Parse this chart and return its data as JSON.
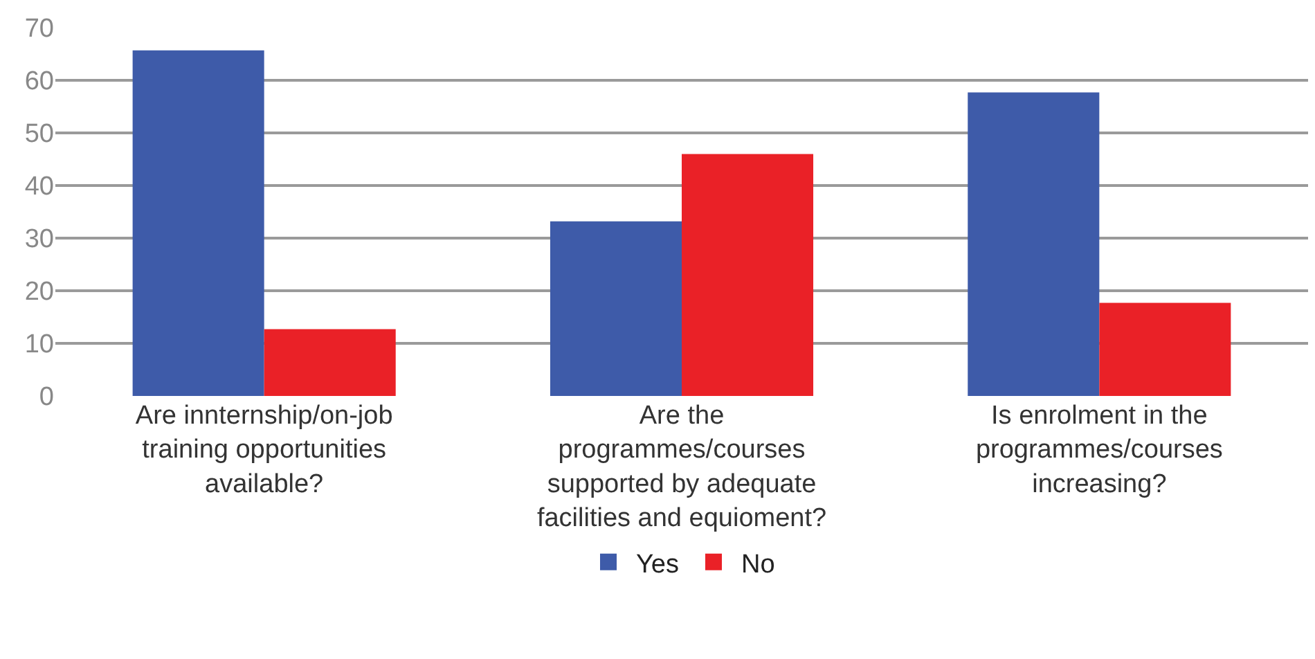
{
  "chart_data": {
    "type": "bar",
    "categories": [
      "Are innternship/on-job\ntraining opportunities\navailable?",
      "Are the\nprogrammes/courses\nsupported by adequate\nfacilities and equioment?",
      "Is enrolment in the\nprogrammes/courses\nincreasing?"
    ],
    "series": [
      {
        "name": "Yes",
        "color": "#3e5ba9",
        "values": [
          65.7,
          33.2,
          57.7
        ]
      },
      {
        "name": "No",
        "color": "#ea2127",
        "values": [
          12.7,
          46,
          17.7
        ]
      }
    ],
    "ylim": [
      0,
      70
    ],
    "yticks": [
      0,
      10,
      20,
      30,
      40,
      50,
      60,
      70
    ],
    "grid": "y",
    "legend": "bottom"
  }
}
